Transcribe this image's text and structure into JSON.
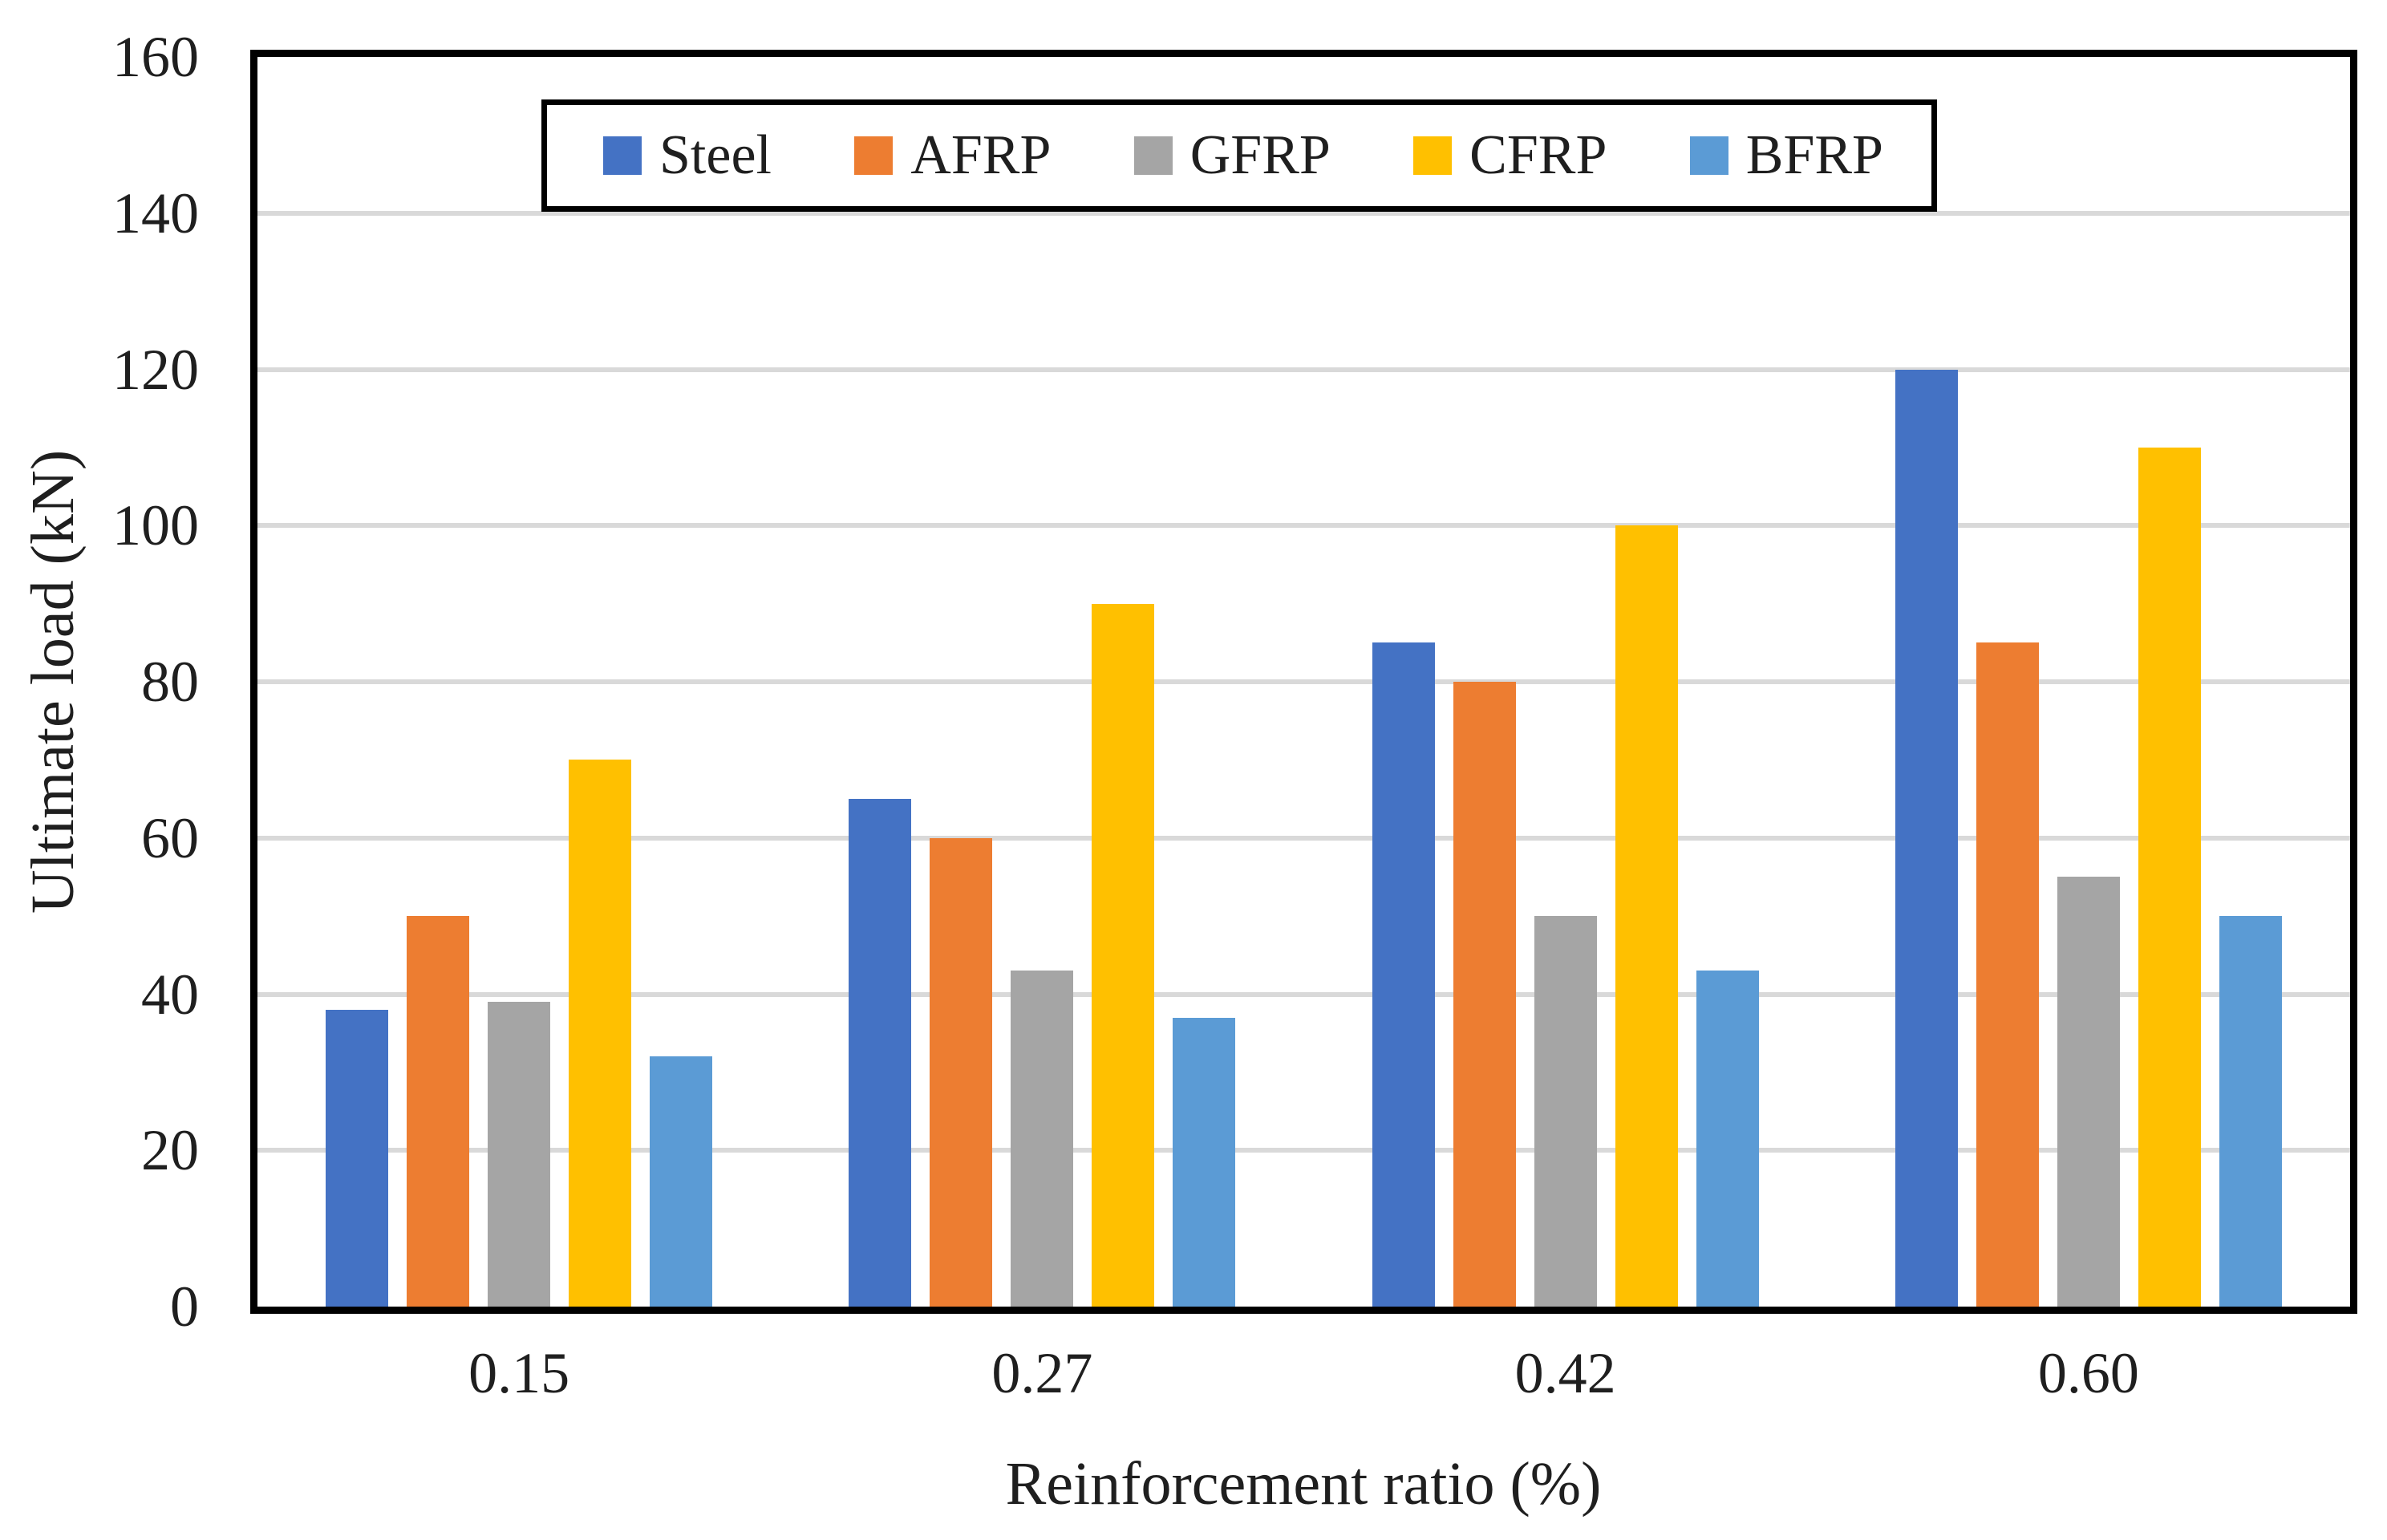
{
  "chart_data": {
    "type": "bar",
    "title": "",
    "categories": [
      "0.15",
      "0.27",
      "0.42",
      "0.60"
    ],
    "series": [
      {
        "name": "Steel",
        "color": "#4472C4",
        "values": [
          38,
          65,
          85,
          120
        ]
      },
      {
        "name": "AFRP",
        "color": "#ED7D31",
        "values": [
          50,
          60,
          80,
          85
        ]
      },
      {
        "name": "GFRP",
        "color": "#A5A5A5",
        "values": [
          39,
          43,
          50,
          55
        ]
      },
      {
        "name": "CFRP",
        "color": "#FFC000",
        "values": [
          70,
          90,
          100,
          110
        ]
      },
      {
        "name": "BFRP",
        "color": "#5B9BD5",
        "values": [
          32,
          37,
          43,
          50
        ]
      }
    ],
    "xlabel": "Reinforcement ratio (%)",
    "ylabel": "Ultimate load (kN)",
    "ylim": [
      0,
      160
    ],
    "y_ticks": [
      0,
      20,
      40,
      60,
      80,
      100,
      120,
      140,
      160
    ],
    "grid": "horizontal",
    "legend_position": "top-inside",
    "style": {
      "gridline_color": "#D9D9D9",
      "axis_border_color": "#000000",
      "text_color": "#1F1F1F",
      "background_color": "#FFFFFF"
    }
  }
}
